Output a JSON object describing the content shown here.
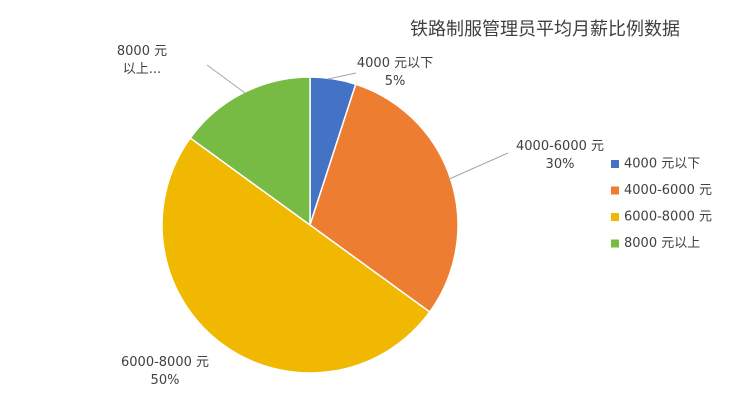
{
  "chart_data": {
    "type": "pie",
    "title": "铁路制服管理员平均月薪比例数据",
    "categories": [
      "4000 元以下",
      "4000-6000 元",
      "6000-8000 元",
      "8000 元以上"
    ],
    "values": [
      5,
      30,
      50,
      15
    ],
    "colors": [
      "#4472c4",
      "#ed7d31",
      "#f0b800",
      "#77bb44"
    ],
    "category_labels": [
      "4000 元以下",
      "4000-6000 元",
      "6000-8000 元",
      "8000 元以上..."
    ],
    "value_labels": [
      "5%",
      "30%",
      "50%",
      null
    ],
    "legend": "right"
  }
}
